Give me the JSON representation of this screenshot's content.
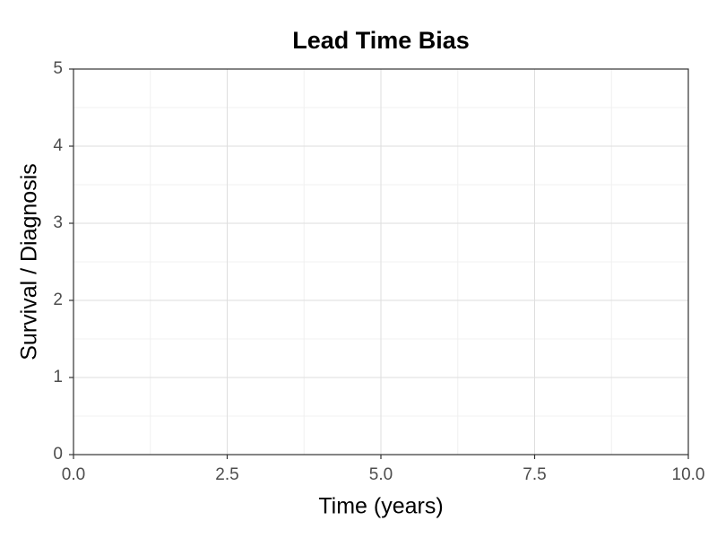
{
  "chart_data": {
    "type": "line",
    "title": "Lead Time Bias",
    "xlabel": "Time (years)",
    "ylabel": "Survival / Diagnosis",
    "xlim": [
      0,
      10
    ],
    "xticks": [
      {
        "value": 0,
        "label": "0.0"
      },
      2.5,
      {
        "value": 5,
        "label": "5.0"
      },
      7.5,
      {
        "value": 10,
        "label": "10.0"
      }
    ],
    "ylim": [
      0,
      5
    ],
    "yticks": [
      0,
      1,
      2,
      3,
      4,
      5
    ],
    "grid": true,
    "minor_grid": true
  }
}
